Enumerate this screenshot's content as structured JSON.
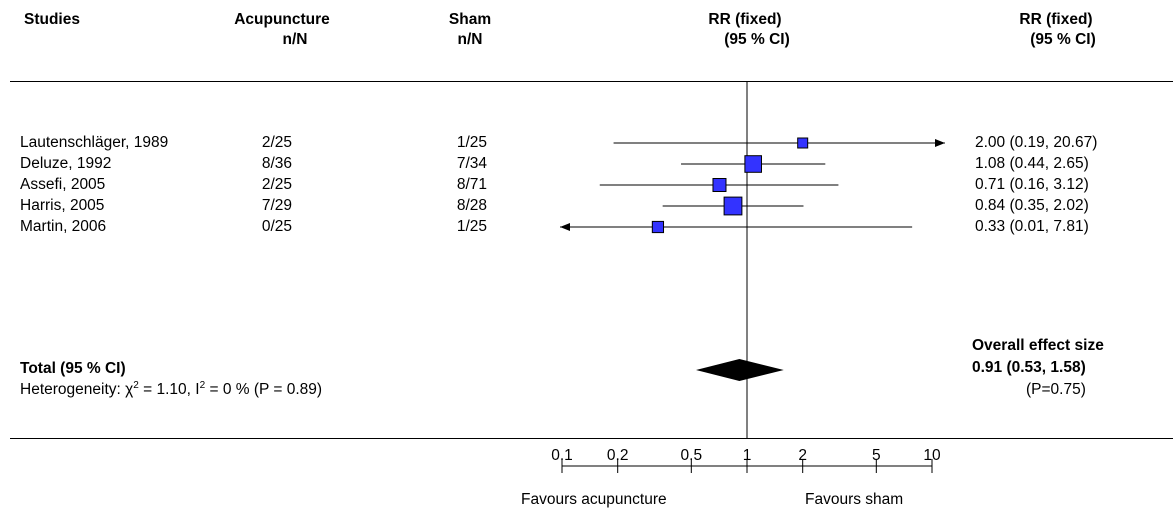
{
  "header": {
    "studies": "Studies",
    "acu_title": "Acupuncture",
    "acu_sub": "n/N",
    "sham_title": "Sham",
    "sham_sub": "n/N",
    "rr_title": "RR (fixed)",
    "rr_sub": "(95 % CI)",
    "rr2_title": "RR (fixed)",
    "rr2_sub": "(95 % CI)"
  },
  "total": {
    "label": "Total (95 % CI)",
    "heterogeneity_prefix": "Heterogeneity: χ",
    "chi_sup": "2",
    "chi_value": " = 1.10, I",
    "i_sup": "2",
    "i_value": " = 0 % (P = 0.89)",
    "overall_label": "Overall effect size",
    "overall_value": "0.91 (0.53, 1.58)",
    "overall_p": "(P=0.75)"
  },
  "footer": {
    "favours_left": "Favours acupuncture",
    "favours_right": "Favours sham"
  },
  "colors": {
    "square": "#3333ff",
    "diamond": "#000000"
  },
  "chart_data": {
    "type": "forest",
    "scale": "log",
    "xlim": [
      0.1,
      10
    ],
    "ticks": [
      0.1,
      0.2,
      0.5,
      1,
      2,
      5,
      10
    ],
    "tick_labels": [
      "0.1",
      "0.2",
      "0.5",
      "1",
      "2",
      "5",
      "10"
    ],
    "studies": [
      {
        "name": "Lautenschläger, 1989",
        "acu": "2/25",
        "sham": "1/25",
        "rr": 2.0,
        "lo": 0.19,
        "hi": 20.67,
        "ci_text": "2.00 (0.19, 20.67)",
        "weight": 0.5
      },
      {
        "name": "Deluze, 1992",
        "acu": "8/36",
        "sham": "7/34",
        "rr": 1.08,
        "lo": 0.44,
        "hi": 2.65,
        "ci_text": "1.08 (0.44, 2.65)",
        "weight": 1.6
      },
      {
        "name": "Assefi, 2005",
        "acu": "2/25",
        "sham": "8/71",
        "rr": 0.71,
        "lo": 0.16,
        "hi": 3.12,
        "ci_text": "0.71 (0.16, 3.12)",
        "weight": 1.0
      },
      {
        "name": "Harris, 2005",
        "acu": "7/29",
        "sham": "8/28",
        "rr": 0.84,
        "lo": 0.35,
        "hi": 2.02,
        "ci_text": "0.84 (0.35, 2.02)",
        "weight": 1.8
      },
      {
        "name": "Martin, 2006",
        "acu": "0/25",
        "sham": "1/25",
        "rr": 0.33,
        "lo": 0.01,
        "hi": 7.81,
        "ci_text": "0.33 (0.01, 7.81)",
        "weight": 0.7
      }
    ],
    "overall": {
      "rr": 0.91,
      "lo": 0.53,
      "hi": 1.58
    }
  }
}
